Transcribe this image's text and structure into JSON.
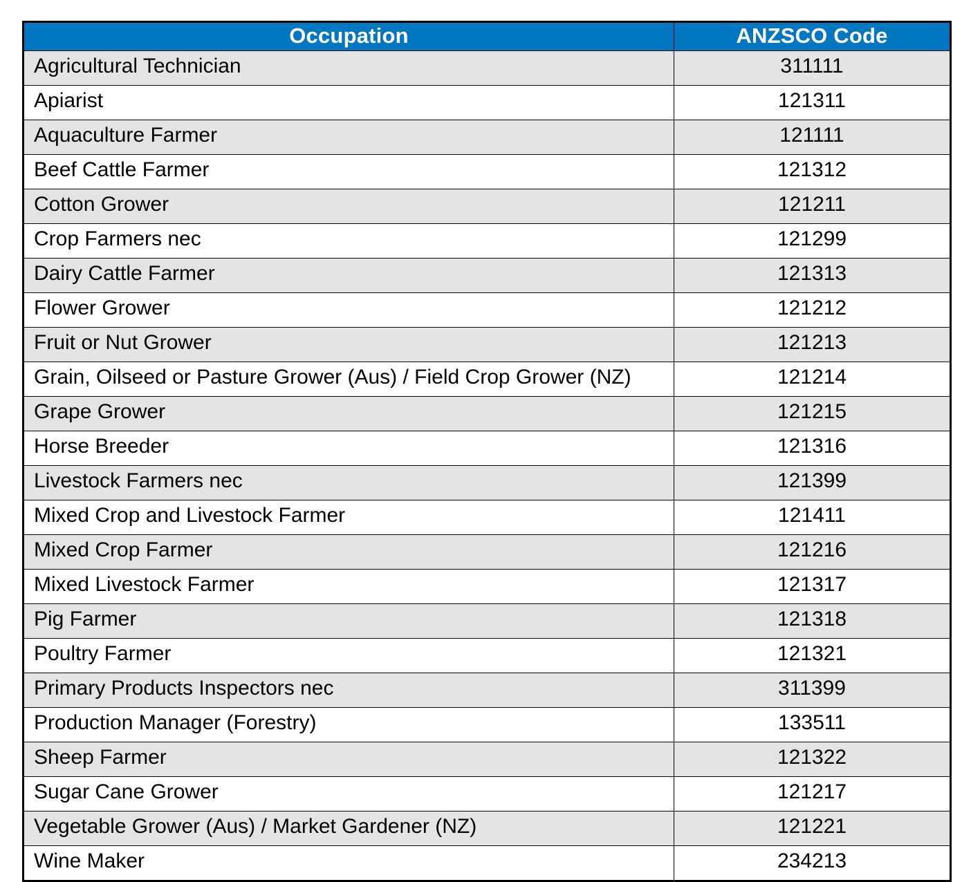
{
  "table": {
    "headers": {
      "occupation": "Occupation",
      "code": "ANZSCO Code"
    },
    "rows": [
      {
        "occupation": "Agricultural Technician",
        "code": "311111"
      },
      {
        "occupation": "Apiarist",
        "code": "121311"
      },
      {
        "occupation": "Aquaculture Farmer",
        "code": "121111"
      },
      {
        "occupation": "Beef Cattle Farmer",
        "code": "121312"
      },
      {
        "occupation": "Cotton Grower",
        "code": "121211"
      },
      {
        "occupation": "Crop Farmers nec",
        "code": "121299"
      },
      {
        "occupation": "Dairy Cattle Farmer",
        "code": "121313"
      },
      {
        "occupation": "Flower Grower",
        "code": "121212"
      },
      {
        "occupation": "Fruit or Nut Grower",
        "code": "121213"
      },
      {
        "occupation": "Grain, Oilseed or Pasture Grower (Aus) / Field Crop Grower (NZ)",
        "code": "121214"
      },
      {
        "occupation": "Grape Grower",
        "code": "121215"
      },
      {
        "occupation": "Horse Breeder",
        "code": "121316"
      },
      {
        "occupation": "Livestock Farmers nec",
        "code": "121399"
      },
      {
        "occupation": "Mixed Crop and Livestock Farmer",
        "code": "121411"
      },
      {
        "occupation": "Mixed Crop Farmer",
        "code": "121216"
      },
      {
        "occupation": "Mixed Livestock Farmer",
        "code": "121317"
      },
      {
        "occupation": "Pig Farmer",
        "code": "121318"
      },
      {
        "occupation": "Poultry Farmer",
        "code": "121321"
      },
      {
        "occupation": "Primary Products Inspectors nec",
        "code": "311399"
      },
      {
        "occupation": "Production Manager (Forestry)",
        "code": "133511"
      },
      {
        "occupation": "Sheep Farmer",
        "code": "121322"
      },
      {
        "occupation": "Sugar Cane Grower",
        "code": "121217"
      },
      {
        "occupation": "Vegetable Grower (Aus) / Market Gardener (NZ)",
        "code": "121221"
      },
      {
        "occupation": "Wine Maker",
        "code": "234213"
      }
    ]
  },
  "colors": {
    "header_background": "#0077C0",
    "header_text": "#FFFFFF",
    "row_alt_background": "#E4E4E4",
    "row_background": "#FFFFFF",
    "border": "#000000"
  }
}
